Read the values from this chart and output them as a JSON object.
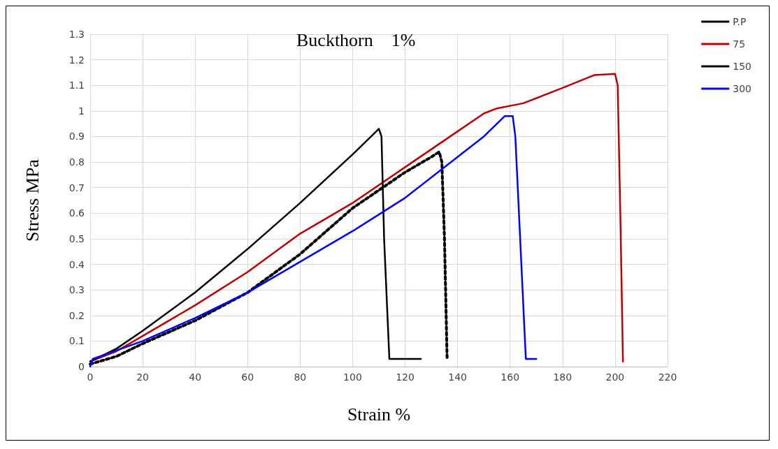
{
  "chart_data": {
    "type": "line",
    "title": "Buckthorn    1%",
    "xlabel": "Strain %",
    "ylabel": "Stress MPa",
    "xlim": [
      0,
      220
    ],
    "xticks": [
      0,
      20,
      40,
      60,
      80,
      100,
      120,
      140,
      160,
      180,
      200,
      220
    ],
    "ylim": [
      0,
      1.3
    ],
    "yticks": [
      0,
      0.1,
      0.2,
      0.3,
      0.4,
      0.5,
      0.6,
      0.7,
      0.8,
      0.9,
      1,
      1.1,
      1.2,
      1.3
    ],
    "grid": true,
    "legend": "right",
    "marker": "none",
    "series": [
      {
        "name": "P.P",
        "color": "#000000",
        "line_style": "dotted",
        "x": [
          0,
          10,
          20,
          40,
          60,
          80,
          100,
          120,
          130,
          133,
          134,
          135,
          136
        ],
        "values": [
          0.01,
          0.04,
          0.09,
          0.18,
          0.29,
          0.44,
          0.62,
          0.76,
          0.82,
          0.84,
          0.8,
          0.5,
          0.03
        ]
      },
      {
        "name": "75",
        "color": "#c00000",
        "line_style": "solid",
        "x": [
          0,
          10,
          20,
          40,
          60,
          80,
          100,
          120,
          140,
          150,
          155,
          165,
          180,
          192,
          200,
          201,
          202,
          203
        ],
        "values": [
          0.02,
          0.06,
          0.12,
          0.24,
          0.37,
          0.52,
          0.64,
          0.78,
          0.92,
          0.99,
          1.01,
          1.03,
          1.09,
          1.14,
          1.145,
          1.1,
          0.6,
          0.02
        ]
      },
      {
        "name": "150",
        "color": "#000000",
        "line_style": "solid",
        "x": [
          0,
          2,
          10,
          20,
          40,
          60,
          80,
          100,
          108,
          110,
          111,
          112,
          114,
          126
        ],
        "values": [
          0.02,
          0.03,
          0.07,
          0.14,
          0.29,
          0.46,
          0.64,
          0.83,
          0.91,
          0.93,
          0.9,
          0.5,
          0.03,
          0.03
        ]
      },
      {
        "name": "300",
        "color": "#0000ff",
        "line_style": "solid",
        "x": [
          0,
          1,
          20,
          40,
          60,
          80,
          100,
          120,
          140,
          150,
          158,
          161,
          162,
          166,
          170
        ],
        "values": [
          0,
          0.03,
          0.1,
          0.19,
          0.29,
          0.41,
          0.53,
          0.66,
          0.82,
          0.9,
          0.98,
          0.98,
          0.9,
          0.03,
          0.03
        ]
      }
    ]
  }
}
